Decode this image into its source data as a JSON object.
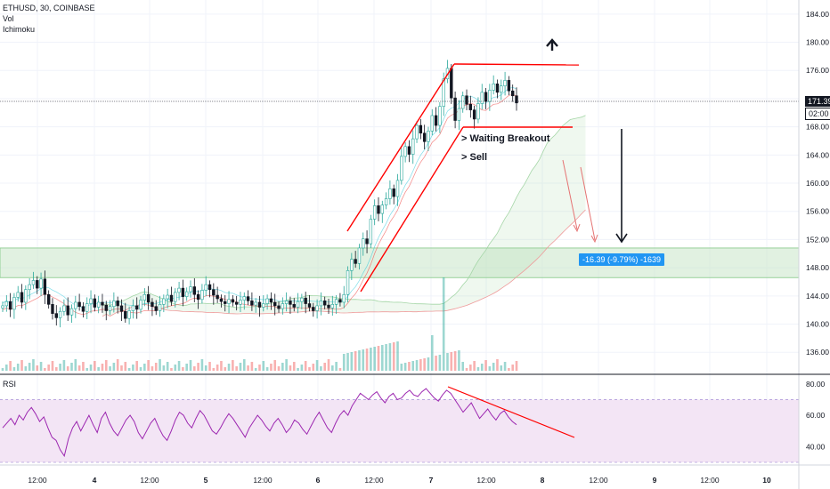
{
  "header": {
    "symbol": "ETHUSD, 30, COINBASE",
    "vol": "Vol",
    "ichimoku": "Ichimoku"
  },
  "price_axis": {
    "ticks": [
      "184.00",
      "180.00",
      "176.00",
      "172.00",
      "168.00",
      "164.00",
      "160.00",
      "156.00",
      "152.00",
      "148.00",
      "144.00",
      "140.00",
      "136.00"
    ],
    "last_price": "171.39",
    "countdown": "02:00"
  },
  "rsi_axis": {
    "label": "RSI",
    "ticks": [
      "80.00",
      "60.00",
      "40.00"
    ]
  },
  "time_axis": {
    "ticks": [
      "12:00",
      "4",
      "12:00",
      "5",
      "12:00",
      "6",
      "12:00",
      "7",
      "12:00",
      "8",
      "12:00",
      "9",
      "12:00",
      "10"
    ]
  },
  "annotations": {
    "waiting": "> Waiting Breakout",
    "sell": "> Sell",
    "measure": "-16.39 (-9.79%) -1639"
  },
  "colors": {
    "up": "#26a69a",
    "down": "#131722",
    "trend": "#ff0000",
    "zone": "#c8e6c9",
    "rsi": "#9c27b0",
    "rsi_band": "#f3e5f5",
    "measure": "#2196f3"
  },
  "chart_data": [
    {
      "type": "candlestick",
      "title": "ETHUSD, 30, COINBASE",
      "ylim": [
        133,
        186
      ],
      "x_labels": [
        "12:00",
        "4",
        "12:00",
        "5",
        "12:00",
        "6",
        "12:00",
        "7",
        "12:00",
        "8"
      ],
      "close": [
        142.6,
        143.2,
        142.1,
        143.8,
        144.5,
        143.1,
        144.9,
        145.6,
        146.2,
        145.1,
        146.4,
        144.2,
        142.8,
        141.5,
        140.9,
        141.8,
        142.6,
        141.3,
        142.2,
        143.1,
        142.5,
        141.8,
        142.9,
        143.6,
        142.4,
        143.1,
        142.7,
        141.9,
        142.5,
        143.3,
        142.6,
        141.8,
        140.8,
        141.9,
        142.6,
        142.1,
        143.4,
        144.2,
        143.1,
        142.5,
        141.9,
        142.8,
        143.6,
        144.1,
        143.2,
        144.5,
        145.1,
        143.9,
        144.6,
        145.3,
        144.2,
        143.5,
        144.8,
        145.6,
        144.9,
        144.1,
        143.6,
        143.2,
        142.9,
        143.5,
        143.1,
        142.8,
        143.4,
        143.9,
        143.3,
        142.7,
        143.1,
        142.4,
        142.9,
        143.6,
        143.1,
        142.6,
        142.2,
        142.9,
        143.3,
        142.8,
        142.4,
        143.2,
        143.7,
        142.9,
        142.4,
        141.9,
        142.6,
        143.3,
        142.7,
        142.3,
        142.8,
        143.5,
        143.1,
        144.2,
        147.6,
        149.2,
        148.6,
        150.8,
        152.1,
        151.4,
        154.9,
        156.8,
        155.7,
        156.9,
        157.8,
        159.2,
        158.1,
        160.4,
        163.8,
        165.2,
        164.1,
        166.3,
        168.2,
        167.1,
        165.9,
        167.4,
        169.6,
        168.2,
        170.9,
        174.8,
        176.3,
        172.1,
        168.9,
        170.6,
        172.4,
        171.2,
        170.4,
        169.1,
        171.3,
        172.9,
        171.6,
        173.2,
        174.1,
        172.9,
        173.8,
        174.6,
        173.1,
        172.4,
        171.39
      ]
    },
    {
      "type": "line",
      "title": "RSI",
      "ylim": [
        30,
        85
      ],
      "values": [
        52,
        55,
        58,
        54,
        60,
        57,
        62,
        65,
        61,
        56,
        59,
        52,
        46,
        44,
        38,
        34,
        45,
        52,
        56,
        50,
        55,
        60,
        54,
        49,
        58,
        62,
        55,
        50,
        47,
        52,
        57,
        60,
        56,
        49,
        45,
        50,
        55,
        58,
        52,
        47,
        44,
        50,
        57,
        62,
        60,
        55,
        52,
        58,
        63,
        60,
        55,
        50,
        48,
        52,
        57,
        61,
        58,
        54,
        50,
        46,
        52,
        56,
        60,
        57,
        53,
        50,
        55,
        58,
        54,
        49,
        52,
        57,
        55,
        51,
        48,
        53,
        58,
        62,
        57,
        52,
        49,
        55,
        60,
        63,
        60,
        66,
        70,
        74,
        72,
        70,
        73,
        75,
        71,
        68,
        72,
        74,
        70,
        71,
        74,
        76,
        73,
        72,
        75,
        77,
        74,
        71,
        69,
        73,
        76,
        74,
        70,
        66,
        62,
        65,
        68,
        63,
        58,
        61,
        64,
        60,
        57,
        61,
        63,
        59,
        56,
        54
      ]
    }
  ]
}
